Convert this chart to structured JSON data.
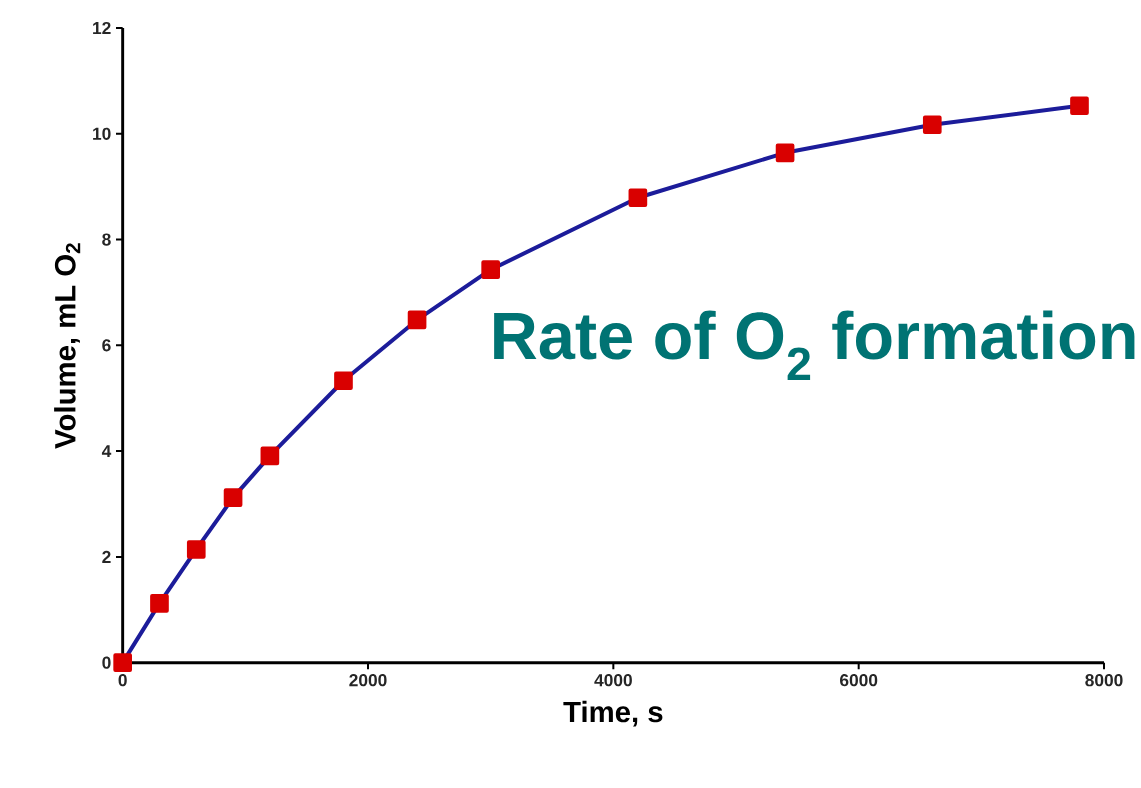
{
  "chart_data": {
    "type": "line",
    "xlabel": "Time, s",
    "ylabel": "Volume, mL O$_{2}$",
    "x": [
      0,
      300,
      600,
      900,
      1200,
      1800,
      2400,
      3000,
      4200,
      5400,
      6600,
      7800
    ],
    "series": [
      {
        "color": "#1c1c9a",
        "values": [
          0,
          1.12,
          2.14,
          3.12,
          3.91,
          5.33,
          6.48,
          7.43,
          8.79,
          9.64,
          10.17,
          10.53
        ]
      }
    ],
    "marker": "square",
    "line_style": "solid",
    "xlim": [
      0,
      8000
    ],
    "xticks": [
      0,
      2000,
      4000,
      6000,
      8000
    ],
    "ylim": [
      0,
      12
    ],
    "yticks": [
      0,
      2,
      4,
      6,
      8,
      10,
      12
    ],
    "annotations": [
      "Rate of O$_{2}$ formation"
    ]
  }
}
